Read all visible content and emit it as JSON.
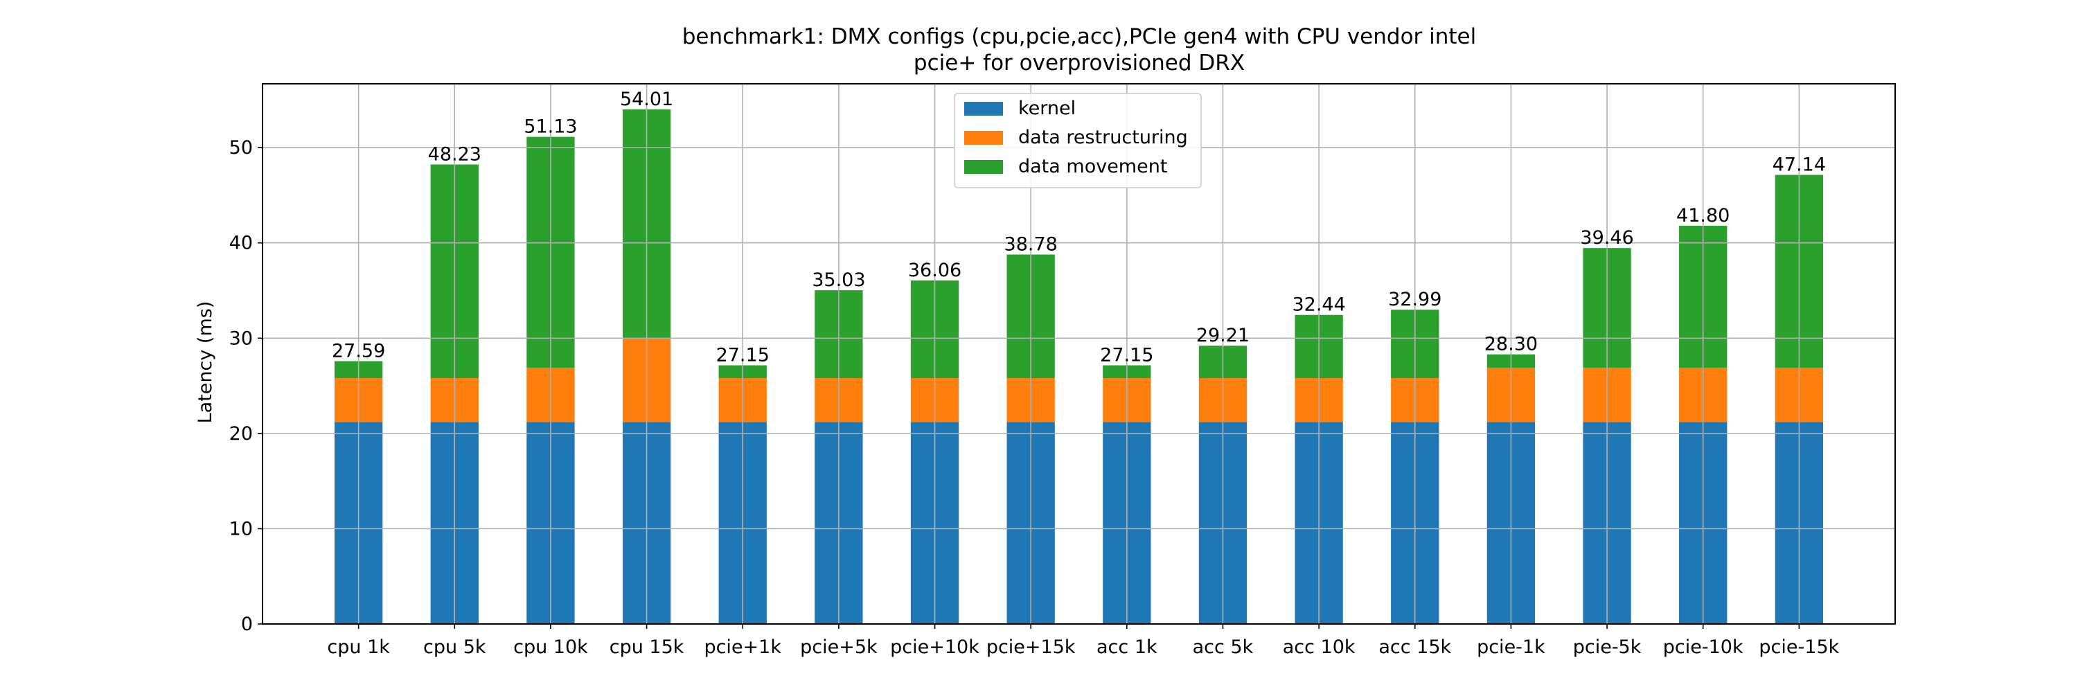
{
  "chart_data": {
    "type": "bar",
    "stacked": true,
    "title": "benchmark1: DMX configs (cpu,pcie,acc),PCIe gen4 with CPU vendor intel",
    "subtitle": "pcie+ for overprovisioned DRX",
    "xlabel": "",
    "ylabel": "Latency (ms)",
    "ylim": [
      0,
      56.7
    ],
    "yticks": [
      0,
      10,
      20,
      30,
      40,
      50
    ],
    "grid": true,
    "legend_position": "top-center",
    "categories": [
      "cpu 1k",
      "cpu 5k",
      "cpu 10k",
      "cpu 15k",
      "pcie+1k",
      "pcie+5k",
      "pcie+10k",
      "pcie+15k",
      "acc 1k",
      "acc 5k",
      "acc 10k",
      "acc 15k",
      "pcie-1k",
      "pcie-5k",
      "pcie-10k",
      "pcie-15k"
    ],
    "series": [
      {
        "name": "kernel",
        "color": "#1f77b4",
        "values": [
          21.2,
          21.2,
          21.2,
          21.2,
          21.2,
          21.2,
          21.2,
          21.2,
          21.2,
          21.2,
          21.2,
          21.2,
          21.2,
          21.2,
          21.2,
          21.2
        ]
      },
      {
        "name": "data restructuring",
        "color": "#ff7f0e",
        "values": [
          4.6,
          4.6,
          5.7,
          8.8,
          4.6,
          4.6,
          4.6,
          4.6,
          4.6,
          4.6,
          4.6,
          4.6,
          5.7,
          5.7,
          5.7,
          5.7
        ]
      },
      {
        "name": "data movement",
        "color": "#2ca02c",
        "values": [
          1.79,
          22.43,
          24.23,
          24.01,
          1.35,
          9.23,
          10.26,
          12.98,
          1.35,
          3.41,
          6.64,
          7.19,
          1.4,
          12.56,
          14.9,
          20.24
        ]
      }
    ],
    "totals_labels": [
      "27.59",
      "48.23",
      "51.13",
      "54.01",
      "27.15",
      "35.03",
      "36.06",
      "38.78",
      "27.15",
      "29.21",
      "32.44",
      "32.99",
      "28.30",
      "39.46",
      "41.80",
      "47.14"
    ]
  }
}
